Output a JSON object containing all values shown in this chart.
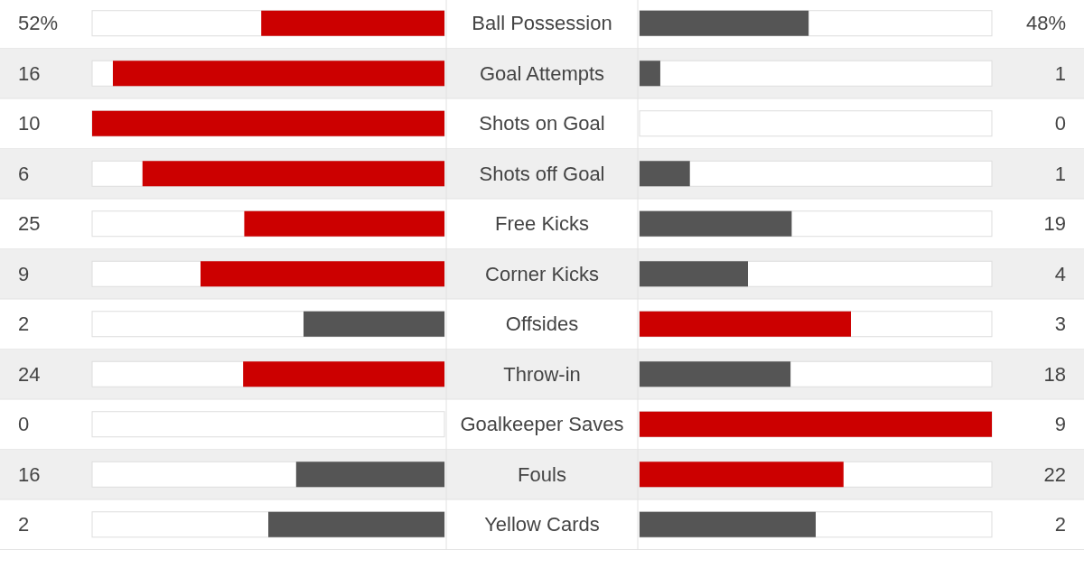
{
  "chart_data": {
    "type": "other",
    "categories": [
      "Ball Possession",
      "Goal Attempts",
      "Shots on Goal",
      "Shots off Goal",
      "Free Kicks",
      "Corner Kicks",
      "Offsides",
      "Throw-in",
      "Goalkeeper Saves",
      "Fouls",
      "Yellow Cards"
    ],
    "series": [
      {
        "values": [
          52,
          16,
          10,
          6,
          25,
          9,
          2,
          24,
          0,
          16,
          2
        ],
        "value_labels": [
          "52%",
          "16",
          "10",
          "6",
          "25",
          "9",
          "2",
          "24",
          "0",
          "16",
          "2"
        ],
        "colors": [
          "#cc0000",
          "#cc0000",
          "#cc0000",
          "#cc0000",
          "#cc0000",
          "#cc0000",
          "#555555",
          "#cc0000",
          "#555555",
          "#555555",
          "#555555"
        ]
      },
      {
        "values": [
          48,
          1,
          0,
          1,
          19,
          4,
          3,
          18,
          9,
          22,
          2
        ],
        "value_labels": [
          "48%",
          "1",
          "0",
          "1",
          "19",
          "4",
          "3",
          "18",
          "9",
          "22",
          "2"
        ],
        "colors": [
          "#555555",
          "#555555",
          "#555555",
          "#555555",
          "#555555",
          "#555555",
          "#cc0000",
          "#555555",
          "#cc0000",
          "#cc0000",
          "#555555"
        ]
      }
    ]
  }
}
